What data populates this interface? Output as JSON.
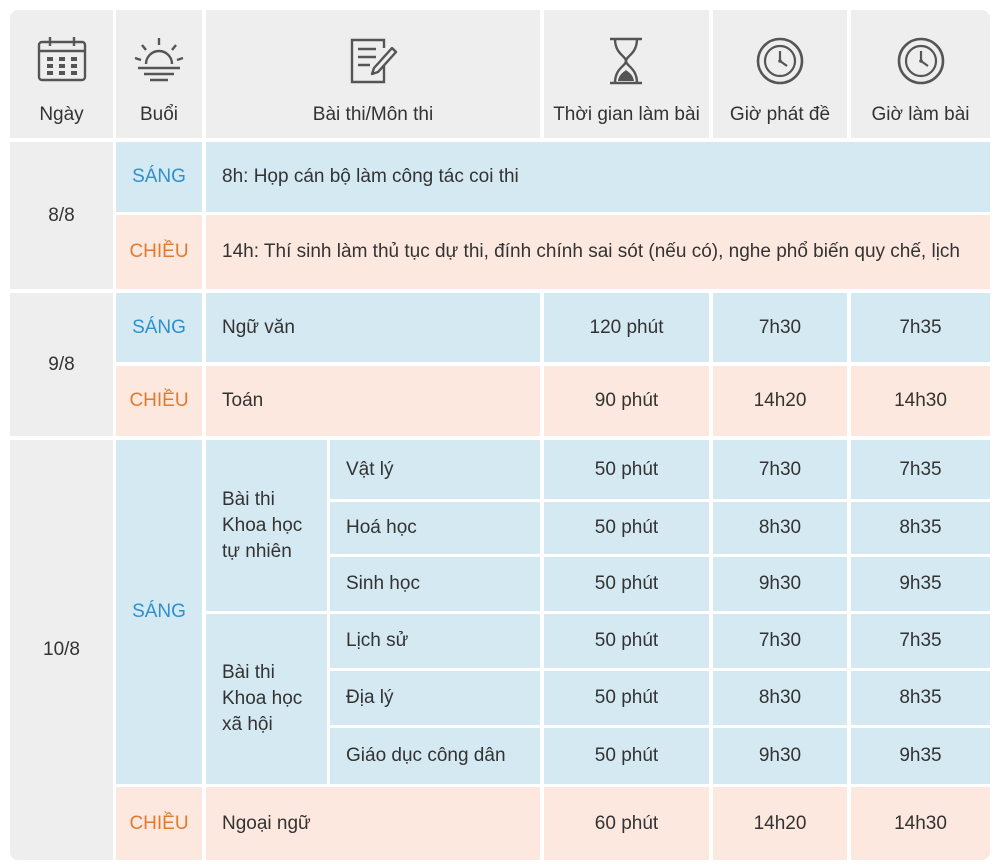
{
  "colors": {
    "header_bg": "#eeeeee",
    "morning_bg": "#d5e9f2",
    "afternoon_bg": "#fde8df",
    "morning_text": "#2f8fcf",
    "afternoon_text": "#e07a2e",
    "icon": "#555555"
  },
  "header": {
    "day": {
      "label": "Ngày",
      "icon": "calendar-icon"
    },
    "session": {
      "label": "Buổi",
      "icon": "sunrise-icon"
    },
    "subject": {
      "label": "Bài thi/Môn thi",
      "icon": "document-pen-icon"
    },
    "duration": {
      "label": "Thời gian làm bài",
      "icon": "hourglass-icon"
    },
    "handout": {
      "label": "Giờ phát đề",
      "icon": "clock-icon"
    },
    "start": {
      "label": "Giờ làm bài",
      "icon": "clock-icon"
    }
  },
  "sessions": {
    "morning": "SÁNG",
    "afternoon": "CHIỀU"
  },
  "days": [
    {
      "date": "8/8",
      "morning": {
        "text": "8h: Họp cán bộ làm công tác coi thi"
      },
      "afternoon": {
        "text": "14h: Thí sinh làm thủ tục dự thi, đính chính sai sót (nếu có), nghe phổ biến quy chế, lịch"
      }
    },
    {
      "date": "9/8",
      "morning": {
        "subject": "Ngữ văn",
        "duration": "120 phút",
        "handout": "7h30",
        "start": "7h35"
      },
      "afternoon": {
        "subject": "Toán",
        "duration": "90 phút",
        "handout": "14h20",
        "start": "14h30"
      }
    },
    {
      "date": "10/8",
      "morning_groups": [
        {
          "group_lines": [
            "Bài thi",
            "Khoa học",
            "tự nhiên"
          ],
          "subjects": [
            {
              "name": "Vật lý",
              "duration": "50 phút",
              "handout": "7h30",
              "start": "7h35"
            },
            {
              "name": "Hoá học",
              "duration": "50 phút",
              "handout": "8h30",
              "start": "8h35"
            },
            {
              "name": "Sinh học",
              "duration": "50 phút",
              "handout": "9h30",
              "start": "9h35"
            }
          ]
        },
        {
          "group_lines": [
            "Bài thi",
            "Khoa học",
            "xã hội"
          ],
          "subjects": [
            {
              "name": "Lịch sử",
              "duration": "50 phút",
              "handout": "7h30",
              "start": "7h35"
            },
            {
              "name": "Địa lý",
              "duration": "50 phút",
              "handout": "8h30",
              "start": "8h35"
            },
            {
              "name": "Giáo dục công dân",
              "duration": "50 phút",
              "handout": "9h30",
              "start": "9h35"
            }
          ]
        }
      ],
      "afternoon": {
        "subject": "Ngoại ngữ",
        "duration": "60 phút",
        "handout": "14h20",
        "start": "14h30"
      }
    }
  ]
}
